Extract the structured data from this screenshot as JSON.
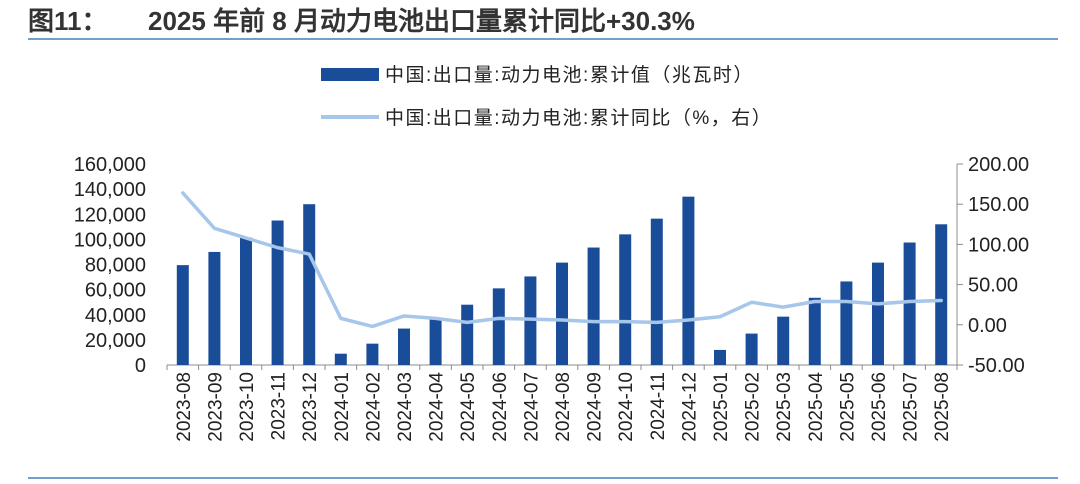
{
  "header": {
    "figure_label": "图11：",
    "title": "2025 年前 8 月动力电池出口量累计同比+30.3%"
  },
  "colors": {
    "bar": "#1a4d99",
    "line": "#a6c6ea",
    "rule": "#4a7bbd",
    "axis": "#8c8c8c",
    "text": "#222222"
  },
  "chart_data": {
    "type": "bar",
    "categories": [
      "2023-08",
      "2023-09",
      "2023-10",
      "2023-11",
      "2023-12",
      "2024-01",
      "2024-02",
      "2024-03",
      "2024-04",
      "2024-05",
      "2024-06",
      "2024-07",
      "2024-08",
      "2024-09",
      "2024-10",
      "2024-11",
      "2024-12",
      "2025-01",
      "2025-02",
      "2025-03",
      "2025-04",
      "2025-05",
      "2025-06",
      "2025-07",
      "2025-08"
    ],
    "series": [
      {
        "name": "中国:出口量:动力电池:累计值（兆瓦时）",
        "type": "bar",
        "axis": "left",
        "values": [
          79500,
          90000,
          101500,
          115000,
          128000,
          9000,
          17000,
          29000,
          36500,
          48000,
          61000,
          70500,
          81500,
          93500,
          104000,
          116500,
          134000,
          12000,
          25000,
          38500,
          53500,
          66500,
          81500,
          97500,
          112000
        ]
      },
      {
        "name": "中国:出口量:动力电池:累计同比（%，右）",
        "type": "line",
        "axis": "right",
        "values": [
          164,
          120,
          108,
          96,
          88,
          8,
          -2,
          11,
          8,
          3,
          8,
          7,
          6,
          4,
          4,
          3,
          6,
          10,
          28,
          22,
          29,
          29,
          26,
          29,
          30.3
        ]
      }
    ],
    "ylim": [
      0,
      160000
    ],
    "yticks": [
      "0",
      "20,000",
      "40,000",
      "60,000",
      "80,000",
      "100,000",
      "120,000",
      "140,000",
      "160,000"
    ],
    "y2lim": [
      -50,
      200
    ],
    "y2ticks": [
      "-50.00",
      "0.00",
      "50.00",
      "100.00",
      "150.00",
      "200.00"
    ],
    "legend": "top-center",
    "grid": false
  }
}
